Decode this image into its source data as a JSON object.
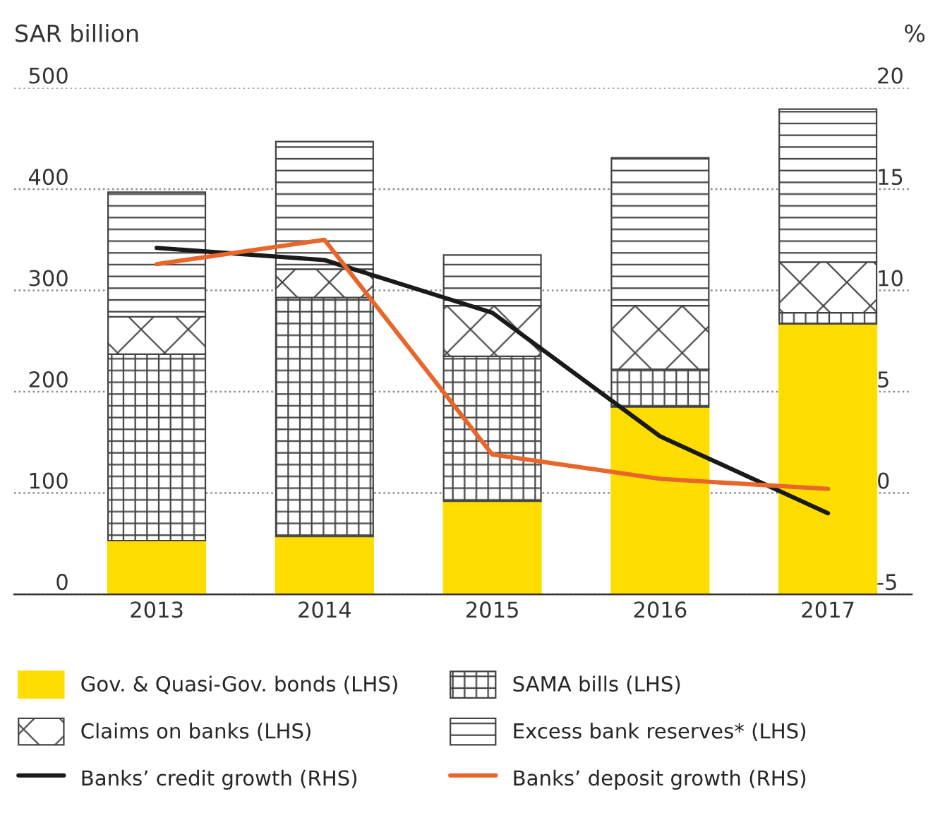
{
  "chart_data": {
    "type": "bar",
    "stacked": true,
    "ylabel": "SAR billion",
    "y2label": "%",
    "categories": [
      "2013",
      "2014",
      "2015",
      "2016",
      "2017"
    ],
    "series": [
      {
        "name": "Gov. & Quasi-Gov. bonds (LHS)",
        "color": "#ffdd00",
        "values": [
          53,
          57,
          92,
          185,
          267
        ]
      },
      {
        "name": "SAMA bills (LHS)",
        "color": "#444444",
        "values": [
          184,
          236,
          143,
          37,
          11
        ]
      },
      {
        "name": "Claims on banks (LHS)",
        "color": "#444444",
        "values": [
          37,
          28,
          50,
          63,
          50
        ]
      },
      {
        "name": "Excess bank reserves* (LHS)",
        "color": "#444444",
        "values": [
          123,
          126,
          50,
          146,
          151
        ]
      },
      {
        "name": "Banks’ credit growth (RHS)",
        "type": "line",
        "axis": "y2",
        "color": "#1a1a1a",
        "values": [
          12.1,
          11.5,
          8.9,
          2.8,
          -1.0
        ]
      },
      {
        "name": "Banks’ deposit growth (RHS)",
        "type": "line",
        "axis": "y2",
        "color": "#e8662a",
        "values": [
          11.3,
          12.5,
          1.9,
          0.7,
          0.2
        ]
      }
    ],
    "ylim": [
      0,
      500
    ],
    "yticks": [
      0,
      100,
      200,
      300,
      400,
      500
    ],
    "y2lim": [
      -5,
      20
    ],
    "y2ticks": [
      -5,
      0,
      5,
      10,
      15,
      20
    ],
    "grid": "y",
    "legend": "bottom",
    "marker": "none",
    "line_style": "solid"
  }
}
